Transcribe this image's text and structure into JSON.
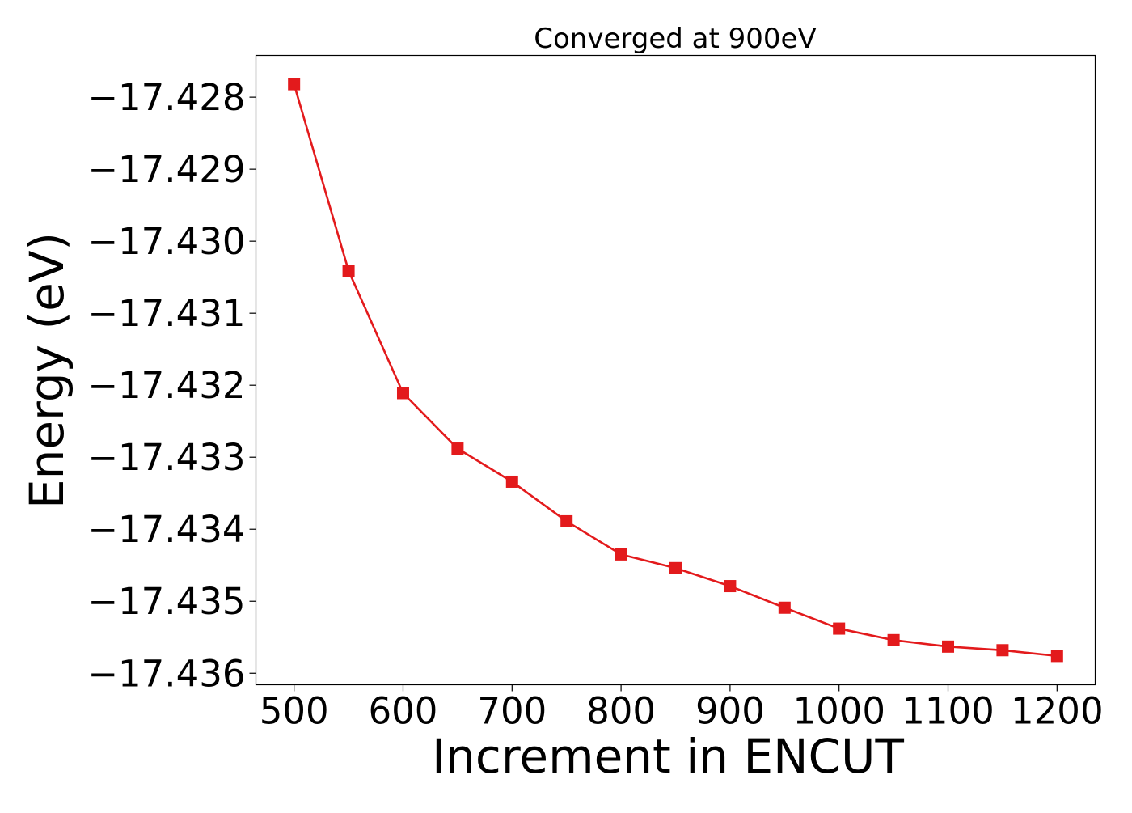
{
  "chart_data": {
    "type": "line",
    "title": "Converged at 900eV",
    "xlabel": "Increment in ENCUT",
    "ylabel": "Energy (eV)",
    "x": [
      500,
      550,
      600,
      650,
      700,
      750,
      800,
      850,
      900,
      950,
      1000,
      1050,
      1100,
      1150,
      1200
    ],
    "series": [
      {
        "name": "",
        "color": "#e31a1c",
        "marker": "square",
        "values": [
          -17.42782,
          -17.43041,
          -17.43211,
          -17.43288,
          -17.43334,
          -17.43389,
          -17.43435,
          -17.43454,
          -17.43479,
          -17.43509,
          -17.43538,
          -17.43554,
          -17.43563,
          -17.43568,
          -17.43576
        ]
      }
    ],
    "x_ticks": [
      "500",
      "600",
      "700",
      "800",
      "900",
      "1000",
      "1100",
      "1200"
    ],
    "x_tick_values": [
      500,
      600,
      700,
      800,
      900,
      1000,
      1100,
      1200
    ],
    "y_ticks": [
      "−17.428",
      "−17.429",
      "−17.430",
      "−17.431",
      "−17.432",
      "−17.433",
      "−17.434",
      "−17.435",
      "−17.436"
    ],
    "y_tick_values": [
      -17.428,
      -17.429,
      -17.43,
      -17.431,
      -17.432,
      -17.433,
      -17.434,
      -17.435,
      -17.436
    ],
    "xlim": [
      465,
      1235
    ],
    "ylim": [
      -17.43616,
      -17.42742
    ],
    "grid": false,
    "legend": "none"
  }
}
